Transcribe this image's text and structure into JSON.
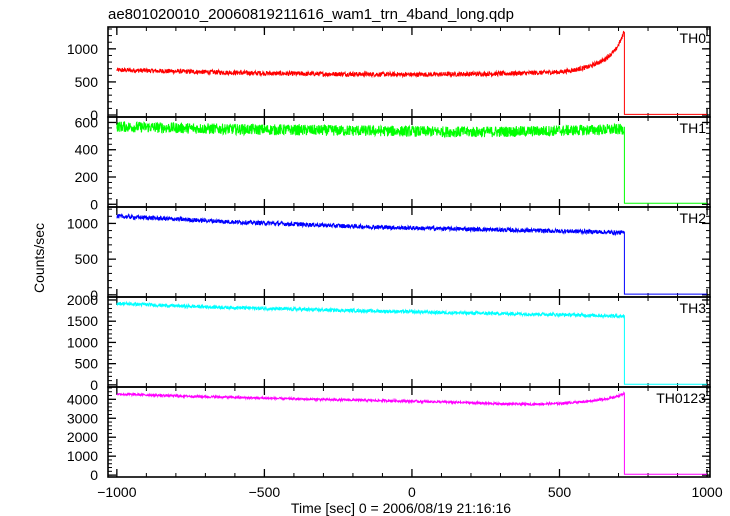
{
  "chart_data": {
    "type": "line",
    "title": "ae801020010_20060819211616_wam1_trn_4band_long.qdp",
    "xlabel": "Time [sec] 0 = 2006/08/19 21:16:16",
    "ylabel": "Counts/sec",
    "xlim": [
      -1030,
      1010
    ],
    "xticks": [
      -1000,
      -500,
      0,
      500,
      1000
    ],
    "xtick_labels": [
      "−1000",
      "−500",
      "0",
      "500",
      "1000"
    ],
    "panels": [
      {
        "name": "TH0",
        "color": "#ff0000",
        "ylim": [
          -30,
          1330
        ],
        "yticks": [
          0,
          500,
          1000
        ],
        "ytick_labels": [
          "0",
          "500",
          "1000"
        ],
        "noise": 35,
        "points": [
          [
            -1000,
            680
          ],
          [
            -900,
            670
          ],
          [
            -800,
            660
          ],
          [
            -700,
            650
          ],
          [
            -600,
            640
          ],
          [
            -500,
            630
          ],
          [
            -400,
            625
          ],
          [
            -300,
            620
          ],
          [
            -200,
            618
          ],
          [
            -100,
            615
          ],
          [
            0,
            612
          ],
          [
            100,
            615
          ],
          [
            200,
            620
          ],
          [
            300,
            625
          ],
          [
            400,
            635
          ],
          [
            500,
            650
          ],
          [
            550,
            680
          ],
          [
            600,
            730
          ],
          [
            650,
            830
          ],
          [
            690,
            980
          ],
          [
            710,
            1150
          ],
          [
            720,
            1280
          ]
        ],
        "after": 10
      },
      {
        "name": "TH1",
        "color": "#00ff00",
        "ylim": [
          -20,
          640
        ],
        "yticks": [
          0,
          200,
          400,
          600
        ],
        "ytick_labels": [
          "0",
          "200",
          "400",
          "600"
        ],
        "noise": 40,
        "points": [
          [
            -1000,
            570
          ],
          [
            -800,
            560
          ],
          [
            -600,
            550
          ],
          [
            -400,
            545
          ],
          [
            -200,
            540
          ],
          [
            0,
            535
          ],
          [
            200,
            530
          ],
          [
            400,
            535
          ],
          [
            600,
            545
          ],
          [
            720,
            550
          ]
        ],
        "after": 8
      },
      {
        "name": "TH2",
        "color": "#0000ff",
        "ylim": [
          -30,
          1230
        ],
        "yticks": [
          0,
          500,
          1000
        ],
        "ytick_labels": [
          "0",
          "500",
          "1000"
        ],
        "noise": 30,
        "points": [
          [
            -1000,
            1100
          ],
          [
            -800,
            1060
          ],
          [
            -600,
            1020
          ],
          [
            -400,
            990
          ],
          [
            -200,
            960
          ],
          [
            0,
            935
          ],
          [
            200,
            920
          ],
          [
            400,
            900
          ],
          [
            600,
            885
          ],
          [
            720,
            870
          ]
        ],
        "after": 10
      },
      {
        "name": "TH3",
        "color": "#00ffff",
        "ylim": [
          -50,
          2070
        ],
        "yticks": [
          0,
          500,
          1000,
          1500,
          2000
        ],
        "ytick_labels": [
          "0",
          "500",
          "1000",
          "1500",
          "2000"
        ],
        "noise": 40,
        "points": [
          [
            -1000,
            1920
          ],
          [
            -800,
            1860
          ],
          [
            -600,
            1820
          ],
          [
            -400,
            1780
          ],
          [
            -200,
            1750
          ],
          [
            0,
            1720
          ],
          [
            200,
            1690
          ],
          [
            400,
            1670
          ],
          [
            600,
            1640
          ],
          [
            720,
            1620
          ]
        ],
        "after": 15
      },
      {
        "name": "TH0123",
        "color": "#ff00ff",
        "ylim": [
          -100,
          4650
        ],
        "yticks": [
          0,
          1000,
          2000,
          3000,
          4000
        ],
        "ytick_labels": [
          "0",
          "1000",
          "2000",
          "3000",
          "4000"
        ],
        "noise": 60,
        "points": [
          [
            -1000,
            4280
          ],
          [
            -800,
            4180
          ],
          [
            -600,
            4100
          ],
          [
            -400,
            4020
          ],
          [
            -200,
            3960
          ],
          [
            0,
            3900
          ],
          [
            200,
            3820
          ],
          [
            300,
            3760
          ],
          [
            400,
            3740
          ],
          [
            500,
            3780
          ],
          [
            600,
            3900
          ],
          [
            680,
            4080
          ],
          [
            720,
            4300
          ]
        ],
        "after": 40
      }
    ],
    "cutoff": 720,
    "xend": 1000
  }
}
